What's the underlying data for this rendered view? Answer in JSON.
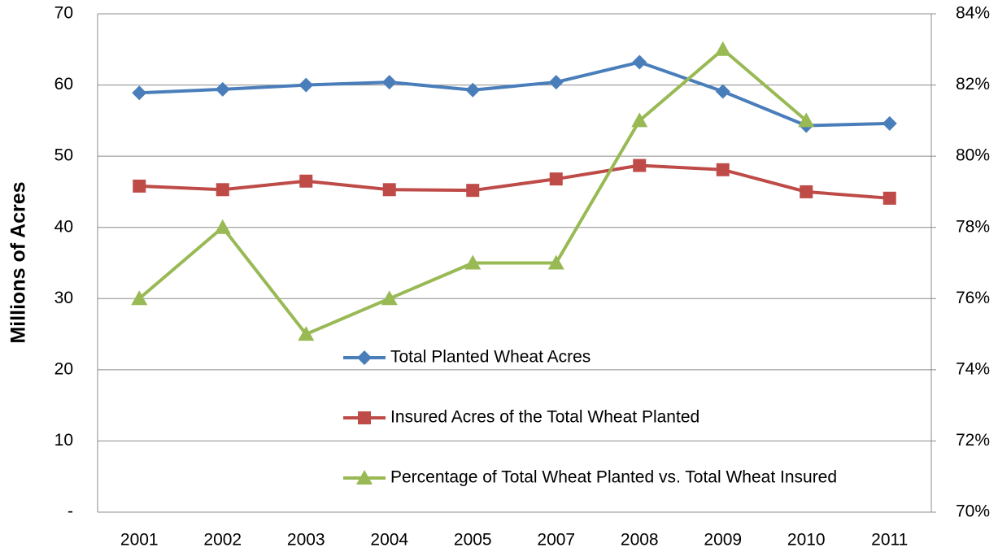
{
  "chart_data": {
    "type": "line",
    "y_label": "Millions of Acres",
    "categories": [
      "2001",
      "2002",
      "2003",
      "2004",
      "2005",
      "2007",
      "2008",
      "2009",
      "2010",
      "2011"
    ],
    "series": [
      {
        "name": "Total Planted Wheat Acres",
        "color": "#4a7ebb",
        "marker": "diamond",
        "values": [
          58.9,
          59.4,
          60.0,
          60.4,
          59.3,
          60.4,
          63.2,
          59.1,
          54.3,
          54.6
        ]
      },
      {
        "name": "Insured Acres of the Total Wheat Planted",
        "color": "#be4b48",
        "marker": "square",
        "values": [
          45.8,
          45.3,
          46.5,
          45.3,
          45.2,
          46.8,
          48.7,
          48.1,
          45.0,
          44.1
        ]
      },
      {
        "name": "Percentage of Total Wheat Planted vs. Total Wheat Insured",
        "color": "#98b954",
        "marker": "triangle",
        "axis": "y2",
        "values": [
          76,
          78,
          75,
          76,
          77,
          77,
          81,
          83,
          81,
          null
        ]
      }
    ],
    "ylim": [
      0,
      70
    ],
    "yticks": [
      {
        "value": 0,
        "label": "-"
      },
      10,
      20,
      30,
      40,
      50,
      60,
      70
    ],
    "y2lim": [
      70,
      84
    ],
    "y2ticks": [
      {
        "value": 70,
        "label": "70%"
      },
      {
        "value": 72,
        "label": "72%"
      },
      {
        "value": 74,
        "label": "74%"
      },
      {
        "value": 76,
        "label": "76%"
      },
      {
        "value": 78,
        "label": "78%"
      },
      {
        "value": 80,
        "label": "80%"
      },
      {
        "value": 82,
        "label": "82%"
      },
      {
        "value": 84,
        "label": "84%"
      }
    ],
    "grid": true
  }
}
